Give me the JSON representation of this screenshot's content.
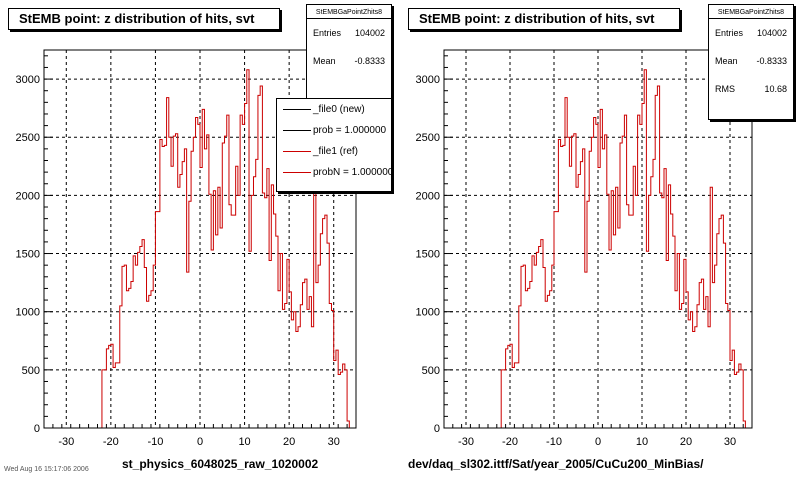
{
  "footer": "Wed Aug 16 15:17:06 2006",
  "panels": [
    {
      "title": "StEMB point: z distribution of hits, svt",
      "stats": {
        "name": "StEMBGaPointZhits8",
        "rows": [
          {
            "label": "Entries",
            "value": "104002"
          },
          {
            "label": "Mean",
            "value": "-0.8333"
          }
        ]
      },
      "legend": [
        {
          "text": "_file0 (new)",
          "color": "#000000"
        },
        {
          "text": "prob = 1.000000",
          "color": "#000000"
        },
        {
          "text": "_file1 (ref)",
          "color": "#cc0000"
        },
        {
          "text": "probN = 1.000000",
          "color": "#cc0000"
        }
      ],
      "xlabel": "st_physics_6048025_raw_1020002"
    },
    {
      "title": "StEMB point: z distribution of hits, svt",
      "stats": {
        "name": "StEMBGaPointZhits8",
        "rows": [
          {
            "label": "Entries",
            "value": "104002"
          },
          {
            "label": "Mean",
            "value": "-0.8333"
          },
          {
            "label": "RMS",
            "value": "10.68"
          }
        ]
      },
      "xlabel": "dev/daq_sl302.ittf/Sat/year_2005/CuCu200_MinBias/"
    }
  ],
  "chart_data": {
    "type": "bar",
    "style": "step-histogram",
    "xlim": [
      -35,
      35
    ],
    "ylim": [
      0,
      3250
    ],
    "xticks": [
      -30,
      -20,
      -10,
      0,
      10,
      20,
      30
    ],
    "xtick_labels": [
      "-30",
      "-20",
      "-10",
      "0",
      "10",
      "20",
      "30"
    ],
    "yticks": [
      0,
      500,
      1000,
      1500,
      2000,
      2500,
      3000
    ],
    "ytick_labels": [
      "0",
      "500",
      "1000",
      "1500",
      "2000",
      "2500",
      "3000"
    ],
    "grid": true,
    "bin_width": 0.5,
    "x_start": -22,
    "line_color": "#cc0000",
    "values": [
      500,
      500,
      680,
      710,
      720,
      520,
      560,
      560,
      1050,
      1390,
      1400,
      1180,
      1200,
      1260,
      1480,
      1400,
      1510,
      1560,
      1620,
      1380,
      1090,
      1140,
      1180,
      1400,
      1860,
      1860,
      2480,
      2420,
      2430,
      2840,
      2500,
      2250,
      2510,
      2530,
      2070,
      2180,
      2290,
      2400,
      1340,
      1950,
      2380,
      2500,
      2670,
      2610,
      2240,
      2740,
      2400,
      2520,
      2010,
      1530,
      2040,
      1660,
      2070,
      1720,
      2450,
      2510,
      2690,
      1920,
      1830,
      1830,
      2250,
      2000,
      2690,
      2610,
      2790,
      3080,
      1520,
      2000,
      2160,
      2310,
      2860,
      2940,
      2020,
      1980,
      2230,
      1440,
      2090,
      1840,
      1650,
      1180,
      1500,
      1020,
      1070,
      1450,
      1170,
      930,
      1000,
      830,
      870,
      1060,
      1250,
      1280,
      1020,
      1130,
      870,
      2070,
      1250,
      1400,
      1670,
      1800,
      1830,
      1590,
      1070,
      1010,
      580,
      670,
      460,
      480,
      550,
      500,
      60,
      0
    ]
  }
}
